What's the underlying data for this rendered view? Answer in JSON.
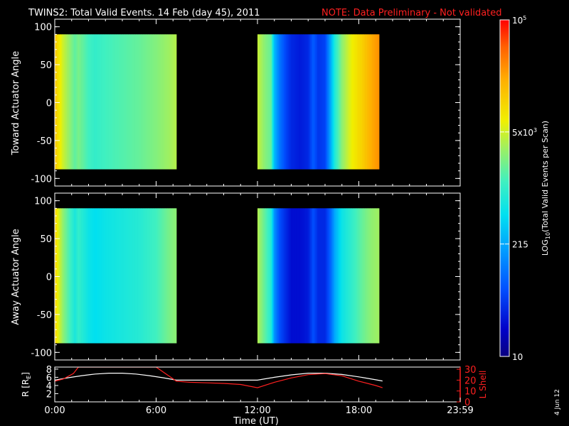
{
  "header": {
    "title": "TWINS2: Total Valid Events. 14 Feb (day  45), 2011",
    "note": "NOTE: Data Preliminary - Not validated"
  },
  "footer": {
    "date_stamp": "4 Jun 12"
  },
  "colors": {
    "background": "#000000",
    "note": "#ff2020",
    "lshell": "#ff2020",
    "radius": "#ffffff"
  },
  "chart_data": [
    {
      "type": "heatmap",
      "panel": "toward",
      "ylabel": "Toward Actuator Angle",
      "yticks": [
        100,
        50,
        0,
        -50,
        -100
      ],
      "ylim": [
        -110,
        110
      ],
      "xlim_hours": [
        0,
        24
      ],
      "data_y_range": [
        -88,
        90
      ],
      "segments_hours": [
        [
          0,
          7.2
        ],
        [
          12,
          19.2
        ]
      ],
      "color_profile": [
        {
          "t": 0.0,
          "v": 0.8
        },
        {
          "t": 0.15,
          "v": 0.74
        },
        {
          "t": 0.5,
          "v": 0.66
        },
        {
          "t": 0.9,
          "v": 0.6
        },
        {
          "t": 1.2,
          "v": 0.55
        },
        {
          "t": 1.4,
          "v": 0.58
        },
        {
          "t": 2.0,
          "v": 0.52
        },
        {
          "t": 2.4,
          "v": 0.5
        },
        {
          "t": 3.0,
          "v": 0.52
        },
        {
          "t": 4.0,
          "v": 0.54
        },
        {
          "t": 5.0,
          "v": 0.56
        },
        {
          "t": 6.0,
          "v": 0.59
        },
        {
          "t": 6.8,
          "v": 0.62
        },
        {
          "t": 7.2,
          "v": 0.64
        },
        {
          "t": 12.0,
          "v": 0.66
        },
        {
          "t": 12.4,
          "v": 0.6
        },
        {
          "t": 12.8,
          "v": 0.56
        },
        {
          "t": 13.0,
          "v": 0.36
        },
        {
          "t": 13.3,
          "v": 0.26
        },
        {
          "t": 13.7,
          "v": 0.18
        },
        {
          "t": 14.0,
          "v": 0.14
        },
        {
          "t": 14.5,
          "v": 0.12
        },
        {
          "t": 15.0,
          "v": 0.14
        },
        {
          "t": 15.3,
          "v": 0.22
        },
        {
          "t": 15.6,
          "v": 0.16
        },
        {
          "t": 16.0,
          "v": 0.18
        },
        {
          "t": 16.3,
          "v": 0.32
        },
        {
          "t": 16.6,
          "v": 0.48
        },
        {
          "t": 17.0,
          "v": 0.6
        },
        {
          "t": 17.6,
          "v": 0.7
        },
        {
          "t": 18.2,
          "v": 0.76
        },
        {
          "t": 18.7,
          "v": 0.82
        },
        {
          "t": 19.2,
          "v": 0.86
        }
      ]
    },
    {
      "type": "heatmap",
      "panel": "away",
      "ylabel": "Away Actuator Angle",
      "yticks": [
        100,
        50,
        0,
        -50,
        -100
      ],
      "ylim": [
        -110,
        110
      ],
      "xlim_hours": [
        0,
        24
      ],
      "data_y_range": [
        -88,
        90
      ],
      "segments_hours": [
        [
          0,
          7.2
        ],
        [
          12,
          19.2
        ]
      ],
      "color_profile": [
        {
          "t": 0.0,
          "v": 0.78
        },
        {
          "t": 0.15,
          "v": 0.7
        },
        {
          "t": 0.5,
          "v": 0.6
        },
        {
          "t": 0.9,
          "v": 0.52
        },
        {
          "t": 1.2,
          "v": 0.46
        },
        {
          "t": 1.4,
          "v": 0.5
        },
        {
          "t": 2.0,
          "v": 0.44
        },
        {
          "t": 2.4,
          "v": 0.42
        },
        {
          "t": 3.0,
          "v": 0.44
        },
        {
          "t": 4.0,
          "v": 0.46
        },
        {
          "t": 5.0,
          "v": 0.48
        },
        {
          "t": 6.0,
          "v": 0.52
        },
        {
          "t": 6.8,
          "v": 0.58
        },
        {
          "t": 7.2,
          "v": 0.6
        },
        {
          "t": 12.0,
          "v": 0.64
        },
        {
          "t": 12.4,
          "v": 0.56
        },
        {
          "t": 12.8,
          "v": 0.48
        },
        {
          "t": 13.0,
          "v": 0.3
        },
        {
          "t": 13.3,
          "v": 0.2
        },
        {
          "t": 13.7,
          "v": 0.14
        },
        {
          "t": 14.0,
          "v": 0.1
        },
        {
          "t": 14.5,
          "v": 0.1
        },
        {
          "t": 15.0,
          "v": 0.12
        },
        {
          "t": 15.3,
          "v": 0.2
        },
        {
          "t": 15.6,
          "v": 0.14
        },
        {
          "t": 16.0,
          "v": 0.14
        },
        {
          "t": 16.3,
          "v": 0.22
        },
        {
          "t": 16.6,
          "v": 0.34
        },
        {
          "t": 17.0,
          "v": 0.44
        },
        {
          "t": 17.6,
          "v": 0.5
        },
        {
          "t": 18.2,
          "v": 0.56
        },
        {
          "t": 18.7,
          "v": 0.6
        },
        {
          "t": 19.2,
          "v": 0.62
        }
      ]
    },
    {
      "type": "line",
      "panel": "ephemeris",
      "xlabel": "Time (UT)",
      "xticks": [
        "0:00",
        "6:00",
        "12:00",
        "18:00",
        "23:59"
      ],
      "xtick_hours": [
        0,
        6,
        12,
        18,
        24
      ],
      "left_axis": {
        "label": "R [RE]",
        "label_base": "R [R",
        "label_sub": "E",
        "label_end": "]",
        "ticks": [
          2,
          4,
          6,
          8
        ],
        "ylim": [
          0,
          8.5
        ]
      },
      "right_axis": {
        "label": "L Shell",
        "ticks": [
          0,
          10,
          20,
          30
        ],
        "ylim": [
          0,
          32
        ]
      },
      "series": [
        {
          "axis": "left",
          "color": "#ffffff",
          "x": [
            0,
            0.8,
            1.6,
            2.4,
            3.2,
            4.0,
            4.8,
            5.6,
            6.4,
            7.2,
            8,
            9,
            10,
            11,
            12,
            13,
            14,
            15,
            16,
            17,
            18,
            19,
            19.4
          ],
          "y": [
            5.3,
            5.9,
            6.4,
            6.8,
            7.0,
            7.0,
            6.8,
            6.4,
            5.9,
            5.3,
            5.3,
            5.3,
            5.3,
            5.3,
            5.3,
            6.0,
            6.6,
            7.0,
            7.0,
            6.7,
            6.1,
            5.4,
            5.1
          ]
        },
        {
          "axis": "right",
          "color": "#ff2020",
          "x": [
            0,
            0.5,
            1.1,
            1.4,
            6.0,
            7.2,
            8,
            9,
            10,
            11,
            12,
            13,
            14,
            15,
            16,
            17,
            18,
            19,
            19.4
          ],
          "y": [
            19,
            21,
            26,
            32,
            32,
            19,
            18,
            17.5,
            17,
            16,
            13,
            18,
            22,
            25,
            26,
            24,
            19,
            15,
            13
          ]
        }
      ]
    },
    {
      "type": "colorbar",
      "label": "LOG10(Total Valid Events per Scan)",
      "label_base": "LOG",
      "label_sub": "10",
      "label_rest": "(Total Valid Events per Scan)",
      "ticks": [
        {
          "label": "10",
          "pos": 0.0
        },
        {
          "label": "215",
          "pos": 0.334
        },
        {
          "label": "5x10",
          "exp": "3",
          "pos": 0.667
        },
        {
          "label": "10",
          "exp": "5",
          "pos": 1.0
        }
      ],
      "range": [
        10,
        100000
      ]
    }
  ]
}
